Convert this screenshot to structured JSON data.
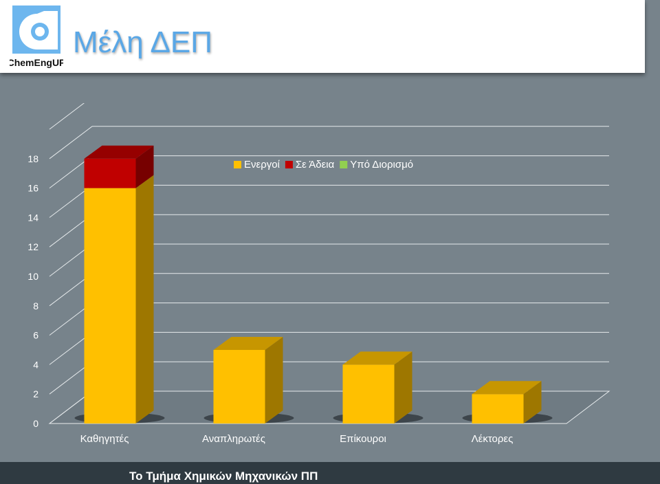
{
  "header": {
    "title": "Μέλη ΔΕΠ",
    "logo_text": "ChemEngUP"
  },
  "footer": {
    "text": "Το Τμήμα Χημικών Μηχανικών ΠΠ"
  },
  "colors": {
    "active": "#ffc000",
    "on_leave": "#c00000",
    "pending": "#92d050",
    "background": "#77838b"
  },
  "chart_data": {
    "type": "bar",
    "stacked": true,
    "three_d": true,
    "categories": [
      "Καθηγητές",
      "Αναπληρωτές",
      "Επίκουροι",
      "Λέκτορες"
    ],
    "series": [
      {
        "name": "Ενεργοί",
        "values": [
          16,
          5,
          4,
          2
        ],
        "color": "#ffc000"
      },
      {
        "name": "Σε Άδεια",
        "values": [
          2,
          0,
          0,
          0
        ],
        "color": "#c00000"
      },
      {
        "name": "Υπό Διορισμό",
        "values": [
          0,
          0,
          0,
          0
        ],
        "color": "#92d050"
      }
    ],
    "ylim": [
      0,
      20
    ],
    "yticks": [
      0,
      2,
      4,
      6,
      8,
      10,
      12,
      14,
      16,
      18
    ],
    "grid": true,
    "legend": "top-right"
  }
}
